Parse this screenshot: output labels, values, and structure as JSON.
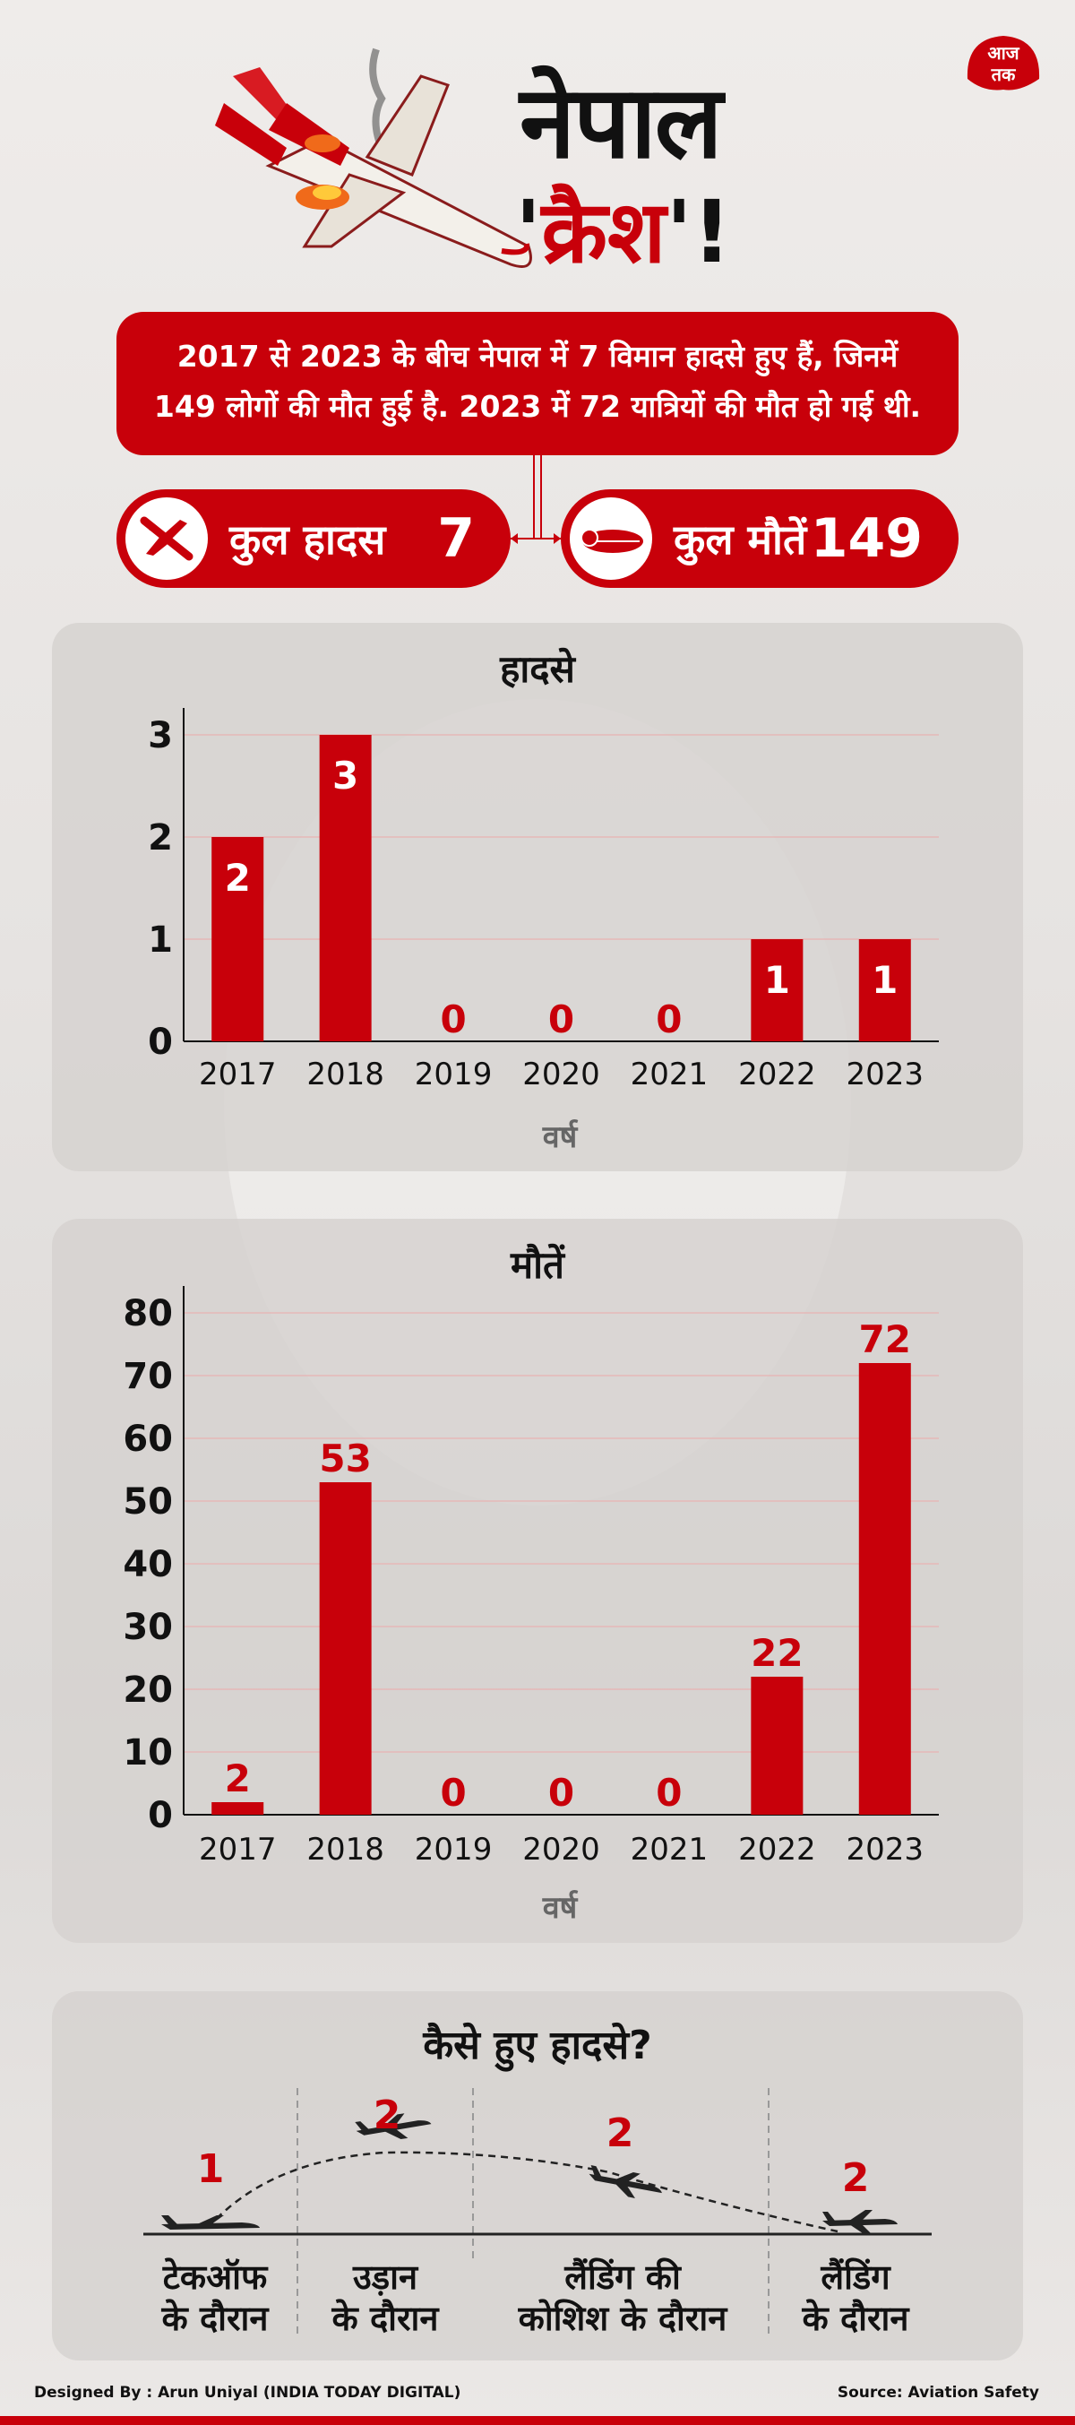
{
  "header": {
    "title_line1": "नेपाल",
    "title_line2_quote_open": "'",
    "title_line2_word": "क्रैश",
    "title_line2_quote_close": "'!",
    "logo_text": "आजतक"
  },
  "intro": {
    "line1": "2017 से 2023 के बीच नेपाल में 7 विमान हादसे हुए हैं, जिनमें",
    "line2": "149 लोगों की मौत हुई है. 2023 में 72 यात्रियों की मौत हो गई थी."
  },
  "totals": {
    "accidents_label": "कुल हादस",
    "accidents_value": "7",
    "deaths_label": "कुल मौतें",
    "deaths_value": "149"
  },
  "chart_data": [
    {
      "type": "bar",
      "title": "हादसे",
      "xlabel": "वर्ष",
      "ylabel": "",
      "categories": [
        "2017",
        "2018",
        "2019",
        "2020",
        "2021",
        "2022",
        "2023"
      ],
      "values": [
        2,
        3,
        0,
        0,
        0,
        1,
        1
      ],
      "value_labels": [
        "2",
        "3",
        "0",
        "0",
        "0",
        "1",
        "1"
      ],
      "ylim": [
        0,
        3
      ],
      "yticks": [
        "0",
        "1",
        "2",
        "3"
      ],
      "grid": true,
      "bar_color": "#c8000a"
    },
    {
      "type": "bar",
      "title": "मौतें",
      "xlabel": "वर्ष",
      "ylabel": "",
      "categories": [
        "2017",
        "2018",
        "2019",
        "2020",
        "2021",
        "2022",
        "2023"
      ],
      "values": [
        2,
        53,
        0,
        0,
        0,
        22,
        72
      ],
      "value_labels": [
        "2",
        "53",
        "0",
        "0",
        "0",
        "22",
        "72"
      ],
      "ylim": [
        0,
        80
      ],
      "yticks": [
        "0",
        "10",
        "20",
        "30",
        "40",
        "50",
        "60",
        "70",
        "80"
      ],
      "grid": true,
      "bar_color": "#c8000a"
    }
  ],
  "how": {
    "title": "कैसे हुए हादसे?",
    "phases": [
      {
        "count": "1",
        "label_line1": "टेकऑफ",
        "label_line2": "के दौरान"
      },
      {
        "count": "2",
        "label_line1": "उड़ान",
        "label_line2": "के दौरान"
      },
      {
        "count": "2",
        "label_line1": "लैंडिंग की",
        "label_line2": "कोशिश के दौरान"
      },
      {
        "count": "2",
        "label_line1": "लैंडिंग",
        "label_line2": "के दौरान"
      }
    ]
  },
  "footer": {
    "designed_by": "Designed By : Arun Uniyal (INDIA TODAY DIGITAL)",
    "source": "Source:  Aviation Safety"
  },
  "colors": {
    "accent": "#c8000a",
    "text": "#111111",
    "muted": "#666666"
  }
}
